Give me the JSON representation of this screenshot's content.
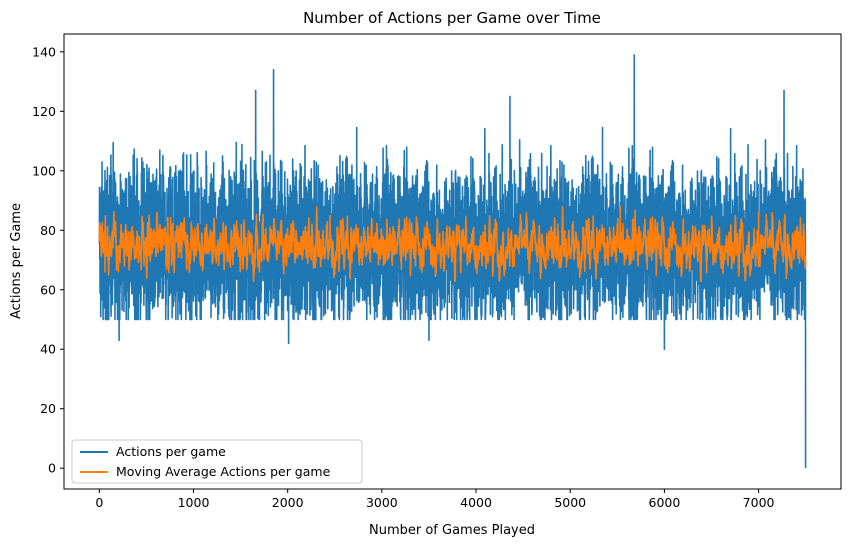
{
  "chart_data": {
    "type": "line",
    "title": "Number of Actions per Game over Time",
    "xlabel": "Number of Games Played",
    "ylabel": "Actions per Game",
    "xlim": [
      -375,
      7875
    ],
    "ylim": [
      -7,
      146
    ],
    "xticks": [
      0,
      1000,
      2000,
      3000,
      4000,
      5000,
      6000,
      7000
    ],
    "yticks": [
      0,
      20,
      40,
      60,
      80,
      100,
      120,
      140
    ],
    "grid": false,
    "legend_position": "lower-left",
    "series": [
      {
        "name": "Actions per game",
        "color": "#1f77b4",
        "n_points": 7500,
        "mean": 75,
        "typical_range": [
          55,
          100
        ],
        "extremes": [
          {
            "x": 1850,
            "y": 134
          },
          {
            "x": 5680,
            "y": 139
          },
          {
            "x": 7270,
            "y": 127
          },
          {
            "x": 4360,
            "y": 125
          },
          {
            "x": 1660,
            "y": 127
          },
          {
            "x": 2010,
            "y": 42
          },
          {
            "x": 210,
            "y": 43
          },
          {
            "x": 3500,
            "y": 43
          },
          {
            "x": 6000,
            "y": 40
          },
          {
            "x": 7499,
            "y": 0
          }
        ]
      },
      {
        "name": "Moving Average Actions per game",
        "color": "#ff7f0e",
        "mean": 75,
        "typical_range": [
          68,
          82
        ],
        "extremes": [
          {
            "x": 5530,
            "y": 88
          },
          {
            "x": 2450,
            "y": 85
          },
          {
            "x": 7000,
            "y": 86
          },
          {
            "x": 60,
            "y": 66
          }
        ]
      }
    ]
  }
}
